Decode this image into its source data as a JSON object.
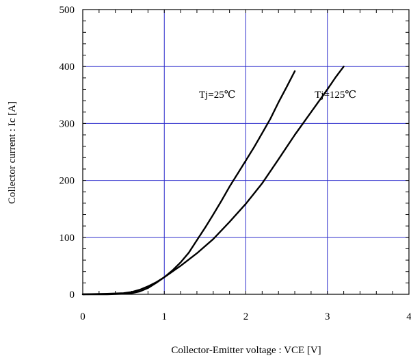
{
  "chart_data": {
    "type": "line",
    "title": "",
    "xlabel": "Collector-Emitter voltage : VCE [V]",
    "ylabel": "Collector current : Ic [A]",
    "xlim": [
      0,
      4
    ],
    "ylim": [
      0,
      500
    ],
    "xticks": [
      0,
      1,
      2,
      3,
      4
    ],
    "yticks": [
      0,
      100,
      200,
      300,
      400,
      500
    ],
    "xtick_labels": [
      "0",
      "1",
      "2",
      "3",
      "4"
    ],
    "ytick_labels": [
      "0",
      "100",
      "200",
      "300",
      "400",
      "500"
    ],
    "grid": true,
    "grid_color": "#2b2bcc",
    "line_color": "#000000",
    "series": [
      {
        "name": "Tj=25℃",
        "x": [
          0,
          0.3,
          0.5,
          0.6,
          0.7,
          0.8,
          0.9,
          1.0,
          1.1,
          1.2,
          1.3,
          1.4,
          1.5,
          1.6,
          1.7,
          1.8,
          1.9,
          2.0,
          2.1,
          2.2,
          2.3,
          2.4,
          2.5,
          2.6
        ],
        "y": [
          0,
          1,
          2,
          4,
          8,
          14,
          21,
          30,
          42,
          56,
          73,
          95,
          117,
          140,
          164,
          189,
          212,
          235,
          258,
          283,
          308,
          337,
          364,
          392
        ]
      },
      {
        "name": "Tj=125℃",
        "x": [
          0,
          0.3,
          0.5,
          0.6,
          0.7,
          0.8,
          0.9,
          1.0,
          1.2,
          1.4,
          1.6,
          1.8,
          2.0,
          2.2,
          2.4,
          2.6,
          2.8,
          3.0,
          3.1,
          3.2
        ],
        "y": [
          0,
          0,
          1,
          2,
          5,
          11,
          20,
          30,
          50,
          72,
          97,
          127,
          159,
          195,
          237,
          280,
          320,
          360,
          381,
          400
        ]
      }
    ],
    "annotations": [
      {
        "text": "Tj=25℃",
        "x": 1.65,
        "y": 345
      },
      {
        "text": "Tj=125℃",
        "x": 3.1,
        "y": 345
      }
    ]
  }
}
